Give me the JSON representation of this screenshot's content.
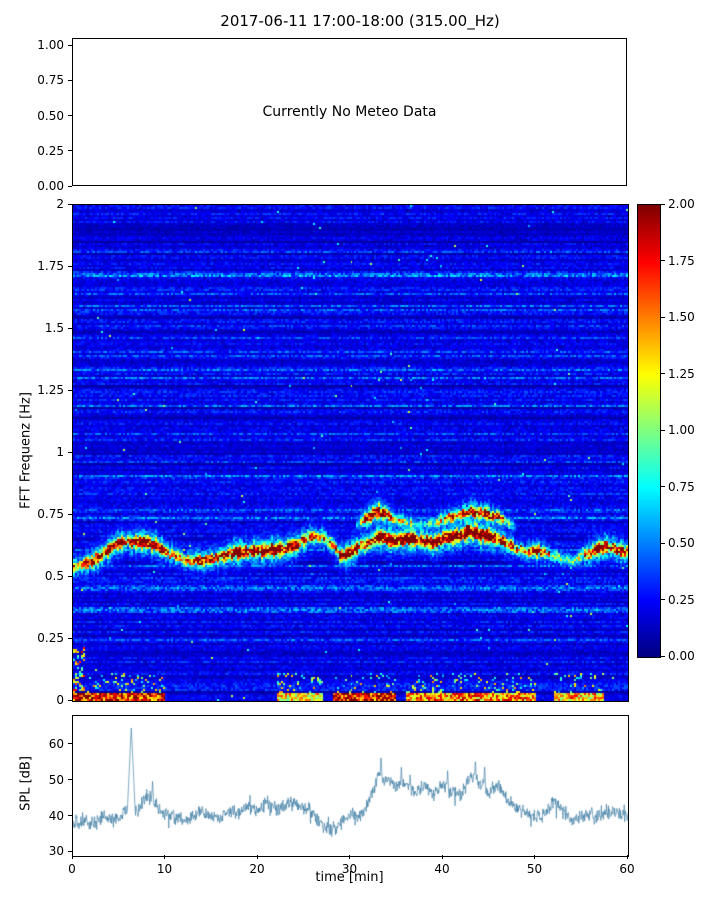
{
  "title": "2017-06-11 17:00-18:00 (315.00_Hz)",
  "chart_data": [
    {
      "type": "line",
      "name": "meteo",
      "annotation": "Currently No Meteo Data",
      "ylim": [
        0,
        1.05
      ],
      "yticks": [
        "1.00",
        "0.75",
        "0.50",
        "0.25",
        "0.00"
      ],
      "series": []
    },
    {
      "type": "heatmap",
      "name": "spectrogram",
      "ylabel": "FFT Frequenz [Hz]",
      "xlim": [
        0,
        60
      ],
      "ylim": [
        0,
        2
      ],
      "yticks": [
        "2",
        "1.75",
        "1.5",
        "1.25",
        "1",
        "0.75",
        "0.5",
        "0.25",
        "0"
      ],
      "vmin": 0,
      "vmax": 2,
      "cmap": "jet",
      "colorbar_ticks": [
        "2.00",
        "1.75",
        "1.50",
        "1.25",
        "1.00",
        "0.75",
        "0.50",
        "0.25",
        "0.00"
      ],
      "main_ridge": {
        "comment": "dominant narrowband tone track, [time_min, freq_Hz, amplitude]",
        "points": [
          [
            0,
            0.54,
            1.1
          ],
          [
            2,
            0.56,
            1.4
          ],
          [
            4,
            0.61,
            1.7
          ],
          [
            5,
            0.635,
            1.6
          ],
          [
            6,
            0.645,
            1.5
          ],
          [
            8,
            0.64,
            1.8
          ],
          [
            9,
            0.625,
            1.6
          ],
          [
            10,
            0.6,
            1.3
          ],
          [
            12,
            0.565,
            1.1
          ],
          [
            14,
            0.565,
            1.3
          ],
          [
            16,
            0.585,
            1.5
          ],
          [
            18,
            0.6,
            1.8
          ],
          [
            20,
            0.605,
            1.6
          ],
          [
            22,
            0.61,
            1.9
          ],
          [
            24,
            0.625,
            1.5
          ],
          [
            25.5,
            0.665,
            1.3
          ],
          [
            27,
            0.665,
            1.1
          ],
          [
            28,
            0.625,
            1.0
          ],
          [
            29,
            0.585,
            1.4
          ],
          [
            30,
            0.6,
            1.7
          ],
          [
            31,
            0.625,
            1.5
          ],
          [
            32,
            0.635,
            1.3
          ],
          [
            33,
            0.66,
            1.7
          ],
          [
            34,
            0.655,
            1.9
          ],
          [
            35,
            0.645,
            2.0
          ],
          [
            36.5,
            0.655,
            1.9
          ],
          [
            38,
            0.645,
            1.8
          ],
          [
            39,
            0.635,
            1.6
          ],
          [
            40,
            0.655,
            1.9
          ],
          [
            41,
            0.66,
            1.8
          ],
          [
            42,
            0.67,
            1.9
          ],
          [
            43,
            0.685,
            2.0
          ],
          [
            44,
            0.67,
            1.9
          ],
          [
            45,
            0.665,
            1.8
          ],
          [
            46,
            0.655,
            1.6
          ],
          [
            47,
            0.63,
            1.3
          ],
          [
            48,
            0.615,
            1.1
          ],
          [
            49,
            0.6,
            1.0
          ],
          [
            50,
            0.605,
            1.5
          ],
          [
            51,
            0.6,
            1.2
          ],
          [
            52,
            0.585,
            0.8
          ],
          [
            53,
            0.575,
            0.6
          ],
          [
            54,
            0.565,
            0.7
          ],
          [
            55,
            0.585,
            1.0
          ],
          [
            56,
            0.6,
            1.5
          ],
          [
            57,
            0.615,
            1.7
          ],
          [
            58,
            0.62,
            1.5
          ],
          [
            59,
            0.605,
            1.4
          ],
          [
            60,
            0.6,
            1.3
          ]
        ]
      },
      "upper_ridge": {
        "comment": "second tone track visible ~min 31-48, [time_min, freq_Hz, amplitude]",
        "points": [
          [
            30.5,
            0.7,
            0.0
          ],
          [
            31,
            0.715,
            0.9
          ],
          [
            32,
            0.745,
            1.5
          ],
          [
            33,
            0.765,
            1.8
          ],
          [
            34,
            0.75,
            1.4
          ],
          [
            35,
            0.73,
            1.0
          ],
          [
            36,
            0.72,
            0.8
          ],
          [
            37,
            0.715,
            0.6
          ],
          [
            38,
            0.71,
            0.5
          ],
          [
            39,
            0.715,
            0.7
          ],
          [
            40,
            0.73,
            1.0
          ],
          [
            41,
            0.74,
            1.3
          ],
          [
            42,
            0.75,
            1.5
          ],
          [
            43,
            0.765,
            1.7
          ],
          [
            44,
            0.755,
            1.4
          ],
          [
            45,
            0.75,
            1.5
          ],
          [
            46,
            0.74,
            1.2
          ],
          [
            47,
            0.72,
            0.8
          ],
          [
            48,
            0.7,
            0.3
          ],
          [
            48.5,
            0.7,
            0.0
          ]
        ]
      },
      "low_band_segments": [
        [
          0,
          10,
          1.9
        ],
        [
          22,
          27,
          1.4
        ],
        [
          28,
          35,
          1.9
        ],
        [
          36,
          50,
          1.6
        ],
        [
          52,
          57.5,
          1.5
        ]
      ],
      "noise_floor": [
        0.05,
        0.35
      ]
    },
    {
      "type": "line",
      "name": "spl",
      "xlabel": "time [min]",
      "ylabel": "SPL [dB]",
      "xlim": [
        0,
        60
      ],
      "ylim": [
        29,
        68
      ],
      "xticks": [
        "0",
        "10",
        "20",
        "30",
        "40",
        "50",
        "60"
      ],
      "yticks": [
        "30",
        "40",
        "50",
        "60"
      ],
      "line_color": "#36789f",
      "noise_amp": 2.3,
      "base_points": [
        [
          0,
          38
        ],
        [
          1,
          38.5
        ],
        [
          2,
          38
        ],
        [
          3,
          40
        ],
        [
          4,
          39
        ],
        [
          5,
          40
        ],
        [
          6,
          42
        ],
        [
          7,
          41.5
        ],
        [
          8,
          46
        ],
        [
          9,
          43
        ],
        [
          10,
          41
        ],
        [
          11,
          40
        ],
        [
          12,
          39
        ],
        [
          13,
          40
        ],
        [
          14,
          41
        ],
        [
          15,
          40
        ],
        [
          16,
          39.5
        ],
        [
          17,
          42
        ],
        [
          18,
          41
        ],
        [
          19,
          43
        ],
        [
          20,
          41
        ],
        [
          21,
          44
        ],
        [
          22,
          42
        ],
        [
          23,
          43
        ],
        [
          24,
          44
        ],
        [
          25,
          42.5
        ],
        [
          26,
          41
        ],
        [
          27,
          37.5
        ],
        [
          28,
          36.5
        ],
        [
          29,
          38
        ],
        [
          30,
          41
        ],
        [
          31,
          40
        ],
        [
          32,
          44
        ],
        [
          33,
          51
        ],
        [
          34,
          50
        ],
        [
          35,
          48
        ],
        [
          36,
          49
        ],
        [
          37,
          47
        ],
        [
          38,
          48.5
        ],
        [
          39,
          46
        ],
        [
          40,
          49
        ],
        [
          41,
          47
        ],
        [
          42,
          46
        ],
        [
          43,
          51
        ],
        [
          44,
          49
        ],
        [
          45,
          47
        ],
        [
          46,
          49
        ],
        [
          47,
          44
        ],
        [
          48,
          42.5
        ],
        [
          49,
          41
        ],
        [
          50,
          40
        ],
        [
          51,
          40.5
        ],
        [
          52,
          44
        ],
        [
          53,
          41
        ],
        [
          54,
          39
        ],
        [
          55,
          40.5
        ],
        [
          56,
          41
        ],
        [
          57,
          40
        ],
        [
          58,
          42
        ],
        [
          59,
          41
        ],
        [
          60,
          40
        ]
      ],
      "spikes": [
        [
          6.3,
          65
        ],
        [
          8.6,
          50
        ],
        [
          33.3,
          57
        ],
        [
          35.5,
          54
        ],
        [
          40.5,
          53
        ],
        [
          43.5,
          56
        ],
        [
          44.5,
          54
        ]
      ]
    }
  ]
}
